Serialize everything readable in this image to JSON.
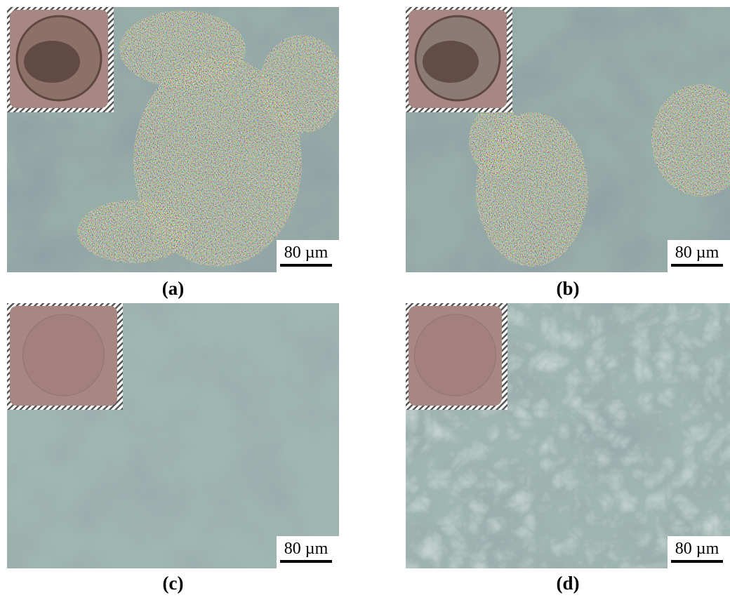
{
  "figure": {
    "panels": [
      {
        "label": "(a)",
        "scale_bar": "80 µm"
      },
      {
        "label": "(b)",
        "scale_bar": "80 µm"
      },
      {
        "label": "(c)",
        "scale_bar": "80 µm"
      },
      {
        "label": "(d)",
        "scale_bar": "80 µm"
      }
    ]
  }
}
